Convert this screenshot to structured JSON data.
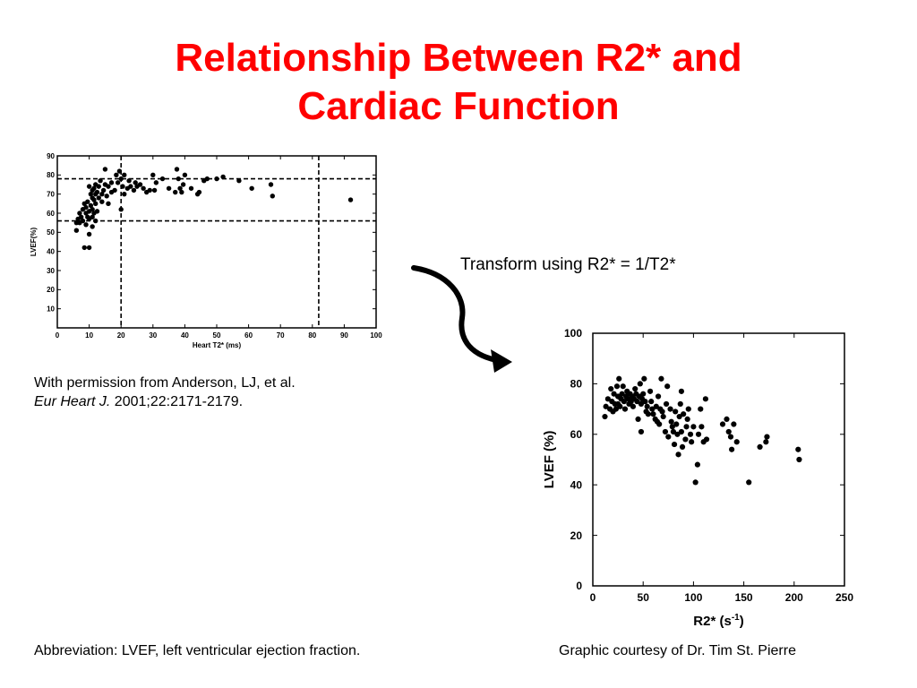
{
  "slide": {
    "title_line1": "Relationship Between R2* and",
    "title_line2": "Cardiac Function",
    "transform_note": "Transform using R2* = 1/T2*",
    "permission_line1": "With permission from Anderson, LJ, et al.",
    "permission_journal": "Eur Heart J.",
    "permission_citation": " 2001;22:2171-2179.",
    "abbreviation": "Abbreviation: LVEF, left ventricular ejection fraction.",
    "courtesy": "Graphic courtesy of Dr. Tim St. Pierre",
    "accent_color": "#ff0000",
    "arrow_icon": "curved-arrow-icon"
  },
  "chart_data": [
    {
      "type": "scatter",
      "xlabel": "Heart T2* (ms)",
      "ylabel": "LVEF(%)",
      "xlim": [
        0,
        100
      ],
      "ylim": [
        0,
        90
      ],
      "xticks": [
        0,
        10,
        20,
        30,
        40,
        50,
        60,
        70,
        80,
        90,
        100
      ],
      "yticks": [
        10,
        20,
        30,
        40,
        50,
        60,
        70,
        80,
        90
      ],
      "reference_lines": {
        "x": [
          20,
          82
        ],
        "y": [
          56,
          78
        ]
      },
      "points": [
        [
          6,
          55
        ],
        [
          6,
          51
        ],
        [
          6.5,
          57
        ],
        [
          7,
          60
        ],
        [
          7,
          55
        ],
        [
          7.5,
          58
        ],
        [
          8,
          62
        ],
        [
          8,
          56
        ],
        [
          8.5,
          65
        ],
        [
          8.5,
          42
        ],
        [
          9,
          60
        ],
        [
          9,
          63
        ],
        [
          9,
          54
        ],
        [
          9.5,
          66
        ],
        [
          9.5,
          58
        ],
        [
          10,
          74
        ],
        [
          10,
          61
        ],
        [
          10,
          57
        ],
        [
          10,
          49
        ],
        [
          10,
          42
        ],
        [
          10.5,
          70
        ],
        [
          10.5,
          64
        ],
        [
          11,
          72
        ],
        [
          11,
          68
        ],
        [
          11,
          62
        ],
        [
          11,
          58
        ],
        [
          11,
          53
        ],
        [
          11.5,
          73
        ],
        [
          11.5,
          67
        ],
        [
          11.5,
          60
        ],
        [
          12,
          75
        ],
        [
          12,
          70
        ],
        [
          12,
          65
        ],
        [
          12,
          56
        ],
        [
          12.5,
          71
        ],
        [
          12.5,
          61
        ],
        [
          13,
          68
        ],
        [
          13,
          74
        ],
        [
          13.5,
          77
        ],
        [
          14,
          70
        ],
        [
          14,
          66
        ],
        [
          14.5,
          72
        ],
        [
          15,
          83
        ],
        [
          15,
          75
        ],
        [
          15.5,
          69
        ],
        [
          16,
          74
        ],
        [
          16,
          65
        ],
        [
          17,
          71
        ],
        [
          17,
          76
        ],
        [
          18,
          72
        ],
        [
          18.5,
          80
        ],
        [
          19,
          76
        ],
        [
          19.5,
          82
        ],
        [
          20,
          62
        ],
        [
          20,
          78
        ],
        [
          20.5,
          74
        ],
        [
          21,
          80
        ],
        [
          21,
          70
        ],
        [
          22,
          73
        ],
        [
          22.5,
          77
        ],
        [
          23,
          74
        ],
        [
          24,
          72
        ],
        [
          24.5,
          76
        ],
        [
          25,
          74
        ],
        [
          26,
          75
        ],
        [
          27,
          73
        ],
        [
          28,
          71
        ],
        [
          29,
          72
        ],
        [
          30,
          80
        ],
        [
          30.5,
          72
        ],
        [
          31,
          76
        ],
        [
          33,
          78
        ],
        [
          35,
          73
        ],
        [
          37,
          71
        ],
        [
          37.5,
          83
        ],
        [
          38,
          78
        ],
        [
          38.5,
          73
        ],
        [
          39,
          71
        ],
        [
          39.5,
          75
        ],
        [
          40,
          80
        ],
        [
          42,
          73
        ],
        [
          44,
          70
        ],
        [
          44.5,
          71
        ],
        [
          46,
          77
        ],
        [
          47,
          78
        ],
        [
          50,
          78
        ],
        [
          52,
          79
        ],
        [
          57,
          77
        ],
        [
          61,
          73
        ],
        [
          67,
          75
        ],
        [
          67.5,
          69
        ],
        [
          92,
          67
        ]
      ]
    },
    {
      "type": "scatter",
      "xlabel": "R2* (s",
      "xlabel_sup": "-1",
      "xlabel_close": ")",
      "ylabel": "LVEF (%)",
      "xlim": [
        0,
        250
      ],
      "ylim": [
        0,
        100
      ],
      "xticks": [
        0,
        50,
        100,
        150,
        200,
        250
      ],
      "yticks": [
        0,
        20,
        40,
        60,
        80,
        100
      ],
      "points": [
        [
          12,
          67
        ],
        [
          13,
          71
        ],
        [
          15,
          74
        ],
        [
          17,
          70
        ],
        [
          18,
          78
        ],
        [
          19,
          73
        ],
        [
          20,
          69
        ],
        [
          21,
          76
        ],
        [
          22,
          72
        ],
        [
          23,
          70
        ],
        [
          24,
          79
        ],
        [
          25,
          75
        ],
        [
          25,
          72
        ],
        [
          26,
          82
        ],
        [
          27,
          71
        ],
        [
          28,
          74
        ],
        [
          29,
          76
        ],
        [
          30,
          79
        ],
        [
          31,
          73
        ],
        [
          32,
          70
        ],
        [
          33,
          75
        ],
        [
          34,
          77
        ],
        [
          35,
          74
        ],
        [
          36,
          72
        ],
        [
          37,
          76
        ],
        [
          38,
          73
        ],
        [
          39,
          75
        ],
        [
          40,
          71
        ],
        [
          41,
          74
        ],
        [
          42,
          78
        ],
        [
          43,
          76
        ],
        [
          44,
          73
        ],
        [
          45,
          66
        ],
        [
          46,
          75
        ],
        [
          47,
          80
        ],
        [
          48,
          72
        ],
        [
          48,
          61
        ],
        [
          49,
          74
        ],
        [
          50,
          76
        ],
        [
          51,
          82
        ],
        [
          52,
          73
        ],
        [
          53,
          69
        ],
        [
          54,
          71
        ],
        [
          55,
          68
        ],
        [
          57,
          77
        ],
        [
          58,
          73
        ],
        [
          59,
          70
        ],
        [
          60,
          68
        ],
        [
          62,
          66
        ],
        [
          63,
          71
        ],
        [
          64,
          65
        ],
        [
          65,
          75
        ],
        [
          66,
          64
        ],
        [
          67,
          70
        ],
        [
          68,
          82
        ],
        [
          69,
          69
        ],
        [
          70,
          67
        ],
        [
          72,
          61
        ],
        [
          73,
          72
        ],
        [
          74,
          79
        ],
        [
          75,
          59
        ],
        [
          77,
          70
        ],
        [
          78,
          65
        ],
        [
          79,
          63
        ],
        [
          80,
          61
        ],
        [
          81,
          56
        ],
        [
          82,
          69
        ],
        [
          83,
          64
        ],
        [
          84,
          60
        ],
        [
          85,
          52
        ],
        [
          86,
          67
        ],
        [
          87,
          72
        ],
        [
          88,
          77
        ],
        [
          88,
          61
        ],
        [
          89,
          55
        ],
        [
          90,
          68
        ],
        [
          92,
          58
        ],
        [
          93,
          63
        ],
        [
          94,
          66
        ],
        [
          95,
          70
        ],
        [
          97,
          60
        ],
        [
          98,
          57
        ],
        [
          100,
          63
        ],
        [
          102,
          41
        ],
        [
          104,
          48
        ],
        [
          105,
          60
        ],
        [
          107,
          70
        ],
        [
          108,
          63
        ],
        [
          110,
          57
        ],
        [
          112,
          74
        ],
        [
          113,
          58
        ],
        [
          129,
          64
        ],
        [
          133,
          66
        ],
        [
          135,
          61
        ],
        [
          137,
          59
        ],
        [
          138,
          54
        ],
        [
          140,
          64
        ],
        [
          143,
          57
        ],
        [
          155,
          41
        ],
        [
          166,
          55
        ],
        [
          172,
          57
        ],
        [
          173,
          59
        ],
        [
          204,
          54
        ],
        [
          205,
          50
        ]
      ]
    }
  ]
}
